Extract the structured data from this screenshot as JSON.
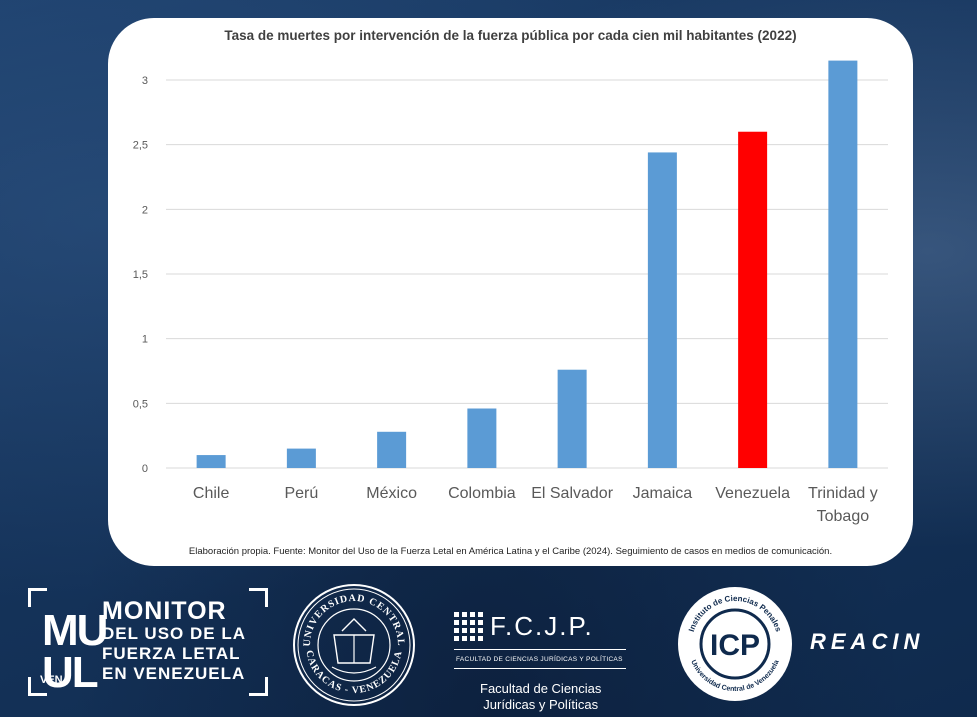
{
  "chart_data": {
    "type": "bar",
    "title": "Tasa de muertes por intervención de la fuerza pública por cada cien mil habitantes (2022)",
    "categories": [
      "Chile",
      "Perú",
      "México",
      "Colombia",
      "El Salvador",
      "Jamaica",
      "Venezuela",
      "Trinidad y Tobago"
    ],
    "category_lines": [
      [
        "Chile"
      ],
      [
        "Perú"
      ],
      [
        "México"
      ],
      [
        "Colombia"
      ],
      [
        "El Salvador"
      ],
      [
        "Jamaica"
      ],
      [
        "Venezuela"
      ],
      [
        "Trinidad y",
        "Tobago"
      ]
    ],
    "values": [
      0.1,
      0.15,
      0.28,
      0.46,
      0.76,
      2.44,
      2.6,
      3.15
    ],
    "ylim": [
      0,
      3
    ],
    "yticks": [
      0,
      0.5,
      1,
      1.5,
      2,
      2.5,
      3
    ],
    "ytick_labels": [
      "0",
      "0,5",
      "1",
      "1,5",
      "2",
      "2,5",
      "3"
    ],
    "xlabel": "",
    "ylabel": "",
    "grid": true,
    "bar_color": "#5b9bd5",
    "highlight_color": "#ff0000",
    "highlight_index": 6
  },
  "footnote": "Elaboración propia. Fuente: Monitor del Uso de la Fuerza Letal en América Latina y el Caribe (2024). Seguimiento de casos en medios de comunicación.",
  "logos": {
    "monitor": {
      "letters_top": "MU",
      "letters_bottom": "UL",
      "ven": "VEN",
      "line1": "MONITOR",
      "line2": "DEL USO DE LA",
      "line3": "FUERZA LETAL",
      "line4": "EN VENEZUELA"
    },
    "ucv": {
      "top_text": "UNIVERSIDAD CENTRAL",
      "bottom_text": "CARACAS - VENEZUELA"
    },
    "fcjp": {
      "title": "F.C.J.P.",
      "subtitle": "FACULTAD DE CIENCIAS JURÍDICAS Y POLÍTICAS",
      "name_line1": "Facultad de Ciencias",
      "name_line2": "Jurídicas y Políticas"
    },
    "icp": {
      "top_text": "Instituto de Ciencias Penales",
      "bottom_text": "Universidad Central de Venezuela",
      "mark": "ICP"
    },
    "reacin": "REACIN"
  }
}
